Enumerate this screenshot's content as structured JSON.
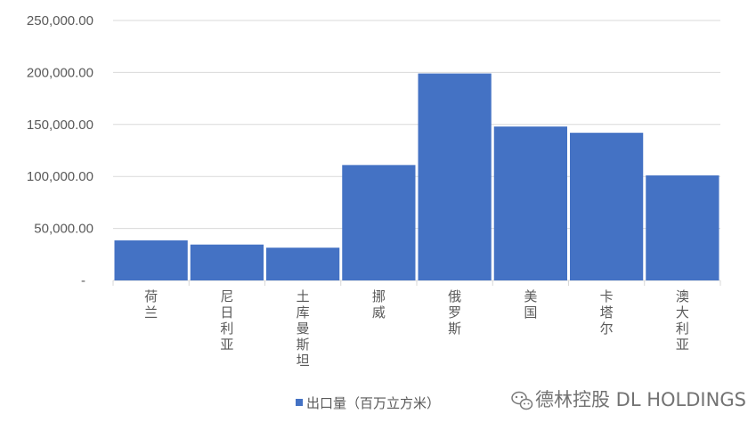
{
  "chart_data": {
    "type": "bar",
    "categories": [
      "荷兰",
      "尼日利亚",
      "土库曼斯坦",
      "挪威",
      "俄罗斯",
      "美国",
      "卡塔尔",
      "澳大利亚"
    ],
    "series": [
      {
        "name": "出口量（百万立方米）",
        "values": [
          38500,
          34500,
          31500,
          111000,
          199000,
          148000,
          142000,
          101000
        ],
        "color": "#4472C4"
      }
    ],
    "yticks": [
      "-",
      "50,000.00",
      "100,000.00",
      "150,000.00",
      "200,000.00",
      "250,000.00"
    ],
    "ylim": [
      0,
      250000
    ],
    "grid": true,
    "legend_position": "bottom"
  },
  "watermark": {
    "text": "德林控股 DL HOLDINGS",
    "icon": "wechat-icon"
  },
  "colors": {
    "bar": "#4472C4",
    "grid": "#D9D9D9",
    "axis_text": "#595959"
  }
}
